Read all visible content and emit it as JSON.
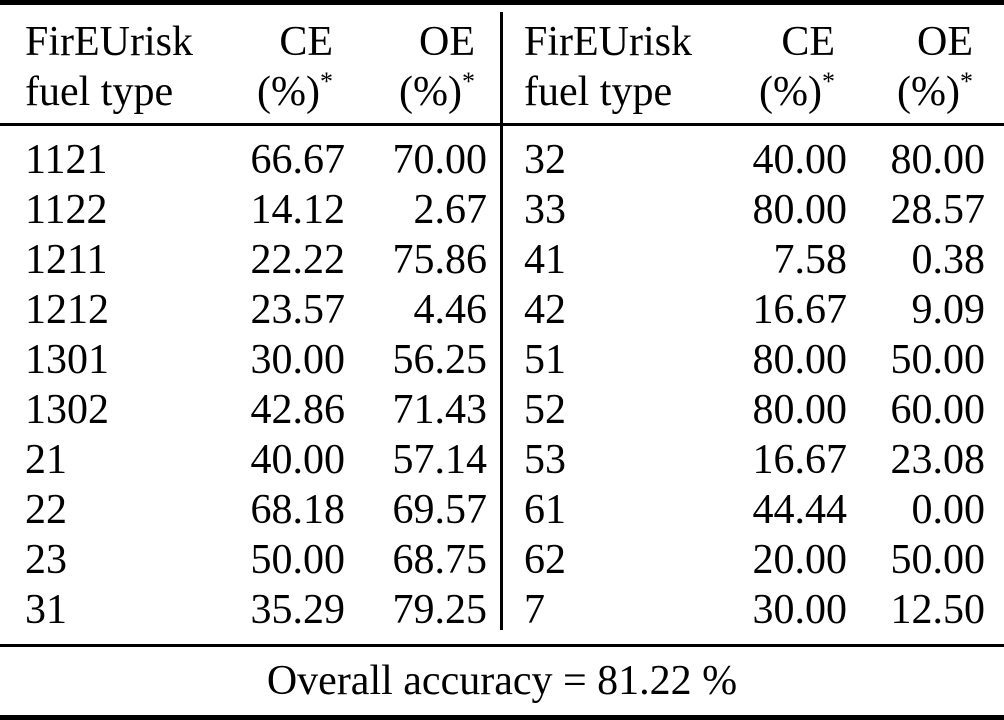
{
  "table": {
    "header": {
      "col1_line1": "FirEUrisk",
      "col1_line2": "fuel type",
      "ce_label": "CE",
      "oe_label": "OE",
      "percent_label": "(%)",
      "star": "*"
    },
    "left_rows": [
      {
        "fuel_type": "1121",
        "ce": "66.67",
        "oe": "70.00"
      },
      {
        "fuel_type": "1122",
        "ce": "14.12",
        "oe": "2.67"
      },
      {
        "fuel_type": "1211",
        "ce": "22.22",
        "oe": "75.86"
      },
      {
        "fuel_type": "1212",
        "ce": "23.57",
        "oe": "4.46"
      },
      {
        "fuel_type": "1301",
        "ce": "30.00",
        "oe": "56.25"
      },
      {
        "fuel_type": "1302",
        "ce": "42.86",
        "oe": "71.43"
      },
      {
        "fuel_type": "21",
        "ce": "40.00",
        "oe": "57.14"
      },
      {
        "fuel_type": "22",
        "ce": "68.18",
        "oe": "69.57"
      },
      {
        "fuel_type": "23",
        "ce": "50.00",
        "oe": "68.75"
      },
      {
        "fuel_type": "31",
        "ce": "35.29",
        "oe": "79.25"
      }
    ],
    "right_rows": [
      {
        "fuel_type": "32",
        "ce": "40.00",
        "oe": "80.00"
      },
      {
        "fuel_type": "33",
        "ce": "80.00",
        "oe": "28.57"
      },
      {
        "fuel_type": "41",
        "ce": "7.58",
        "oe": "0.38"
      },
      {
        "fuel_type": "42",
        "ce": "16.67",
        "oe": "9.09"
      },
      {
        "fuel_type": "51",
        "ce": "80.00",
        "oe": "50.00"
      },
      {
        "fuel_type": "52",
        "ce": "80.00",
        "oe": "60.00"
      },
      {
        "fuel_type": "53",
        "ce": "16.67",
        "oe": "23.08"
      },
      {
        "fuel_type": "61",
        "ce": "44.44",
        "oe": "0.00"
      },
      {
        "fuel_type": "62",
        "ce": "20.00",
        "oe": "50.00"
      },
      {
        "fuel_type": "7",
        "ce": "30.00",
        "oe": "12.50"
      }
    ],
    "footer": "Overall accuracy = 81.22 %",
    "colors": {
      "text": "#000000",
      "background": "#ffffff",
      "rule": "#000000"
    }
  }
}
